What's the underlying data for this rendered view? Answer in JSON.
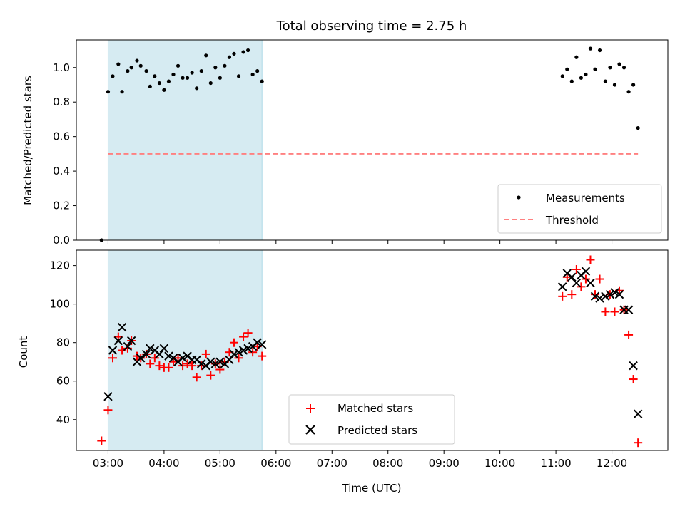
{
  "chart_data": [
    {
      "type": "scatter",
      "title": "Total observing time = 2.75 h",
      "ylabel": "Matched/Predicted stars",
      "xlim": [
        "02:26",
        "13:00"
      ],
      "ylim": [
        0,
        1.16
      ],
      "yticks": [
        "0.0",
        "0.2",
        "0.4",
        "0.6",
        "0.8",
        "1.0"
      ],
      "shaded_interval": {
        "start": "03:00",
        "end": "05:45",
        "color": "#add8e6"
      },
      "legend_position": "lower right",
      "series": [
        {
          "name": "Measurements",
          "color": "#000000",
          "marker": "dot",
          "points": [
            {
              "x": "02:53",
              "y": 0.0
            },
            {
              "x": "03:00",
              "y": 0.86
            },
            {
              "x": "03:05",
              "y": 0.95
            },
            {
              "x": "03:11",
              "y": 1.02
            },
            {
              "x": "03:15",
              "y": 0.86
            },
            {
              "x": "03:21",
              "y": 0.98
            },
            {
              "x": "03:25",
              "y": 1.0
            },
            {
              "x": "03:31",
              "y": 1.04
            },
            {
              "x": "03:35",
              "y": 1.01
            },
            {
              "x": "03:41",
              "y": 0.98
            },
            {
              "x": "03:45",
              "y": 0.89
            },
            {
              "x": "03:50",
              "y": 0.95
            },
            {
              "x": "03:55",
              "y": 0.91
            },
            {
              "x": "04:00",
              "y": 0.87
            },
            {
              "x": "04:05",
              "y": 0.92
            },
            {
              "x": "04:10",
              "y": 0.96
            },
            {
              "x": "04:15",
              "y": 1.01
            },
            {
              "x": "04:20",
              "y": 0.94
            },
            {
              "x": "04:25",
              "y": 0.94
            },
            {
              "x": "04:30",
              "y": 0.97
            },
            {
              "x": "04:35",
              "y": 0.88
            },
            {
              "x": "04:40",
              "y": 0.98
            },
            {
              "x": "04:45",
              "y": 1.07
            },
            {
              "x": "04:50",
              "y": 0.91
            },
            {
              "x": "04:55",
              "y": 1.0
            },
            {
              "x": "05:00",
              "y": 0.94
            },
            {
              "x": "05:05",
              "y": 1.01
            },
            {
              "x": "05:10",
              "y": 1.06
            },
            {
              "x": "05:15",
              "y": 1.08
            },
            {
              "x": "05:20",
              "y": 0.95
            },
            {
              "x": "05:25",
              "y": 1.09
            },
            {
              "x": "05:30",
              "y": 1.1
            },
            {
              "x": "05:35",
              "y": 0.96
            },
            {
              "x": "05:40",
              "y": 0.98
            },
            {
              "x": "05:45",
              "y": 0.92
            },
            {
              "x": "11:07",
              "y": 0.95
            },
            {
              "x": "11:12",
              "y": 0.99
            },
            {
              "x": "11:17",
              "y": 0.92
            },
            {
              "x": "11:22",
              "y": 1.06
            },
            {
              "x": "11:27",
              "y": 0.94
            },
            {
              "x": "11:32",
              "y": 0.96
            },
            {
              "x": "11:37",
              "y": 1.11
            },
            {
              "x": "11:42",
              "y": 0.99
            },
            {
              "x": "11:47",
              "y": 1.1
            },
            {
              "x": "11:53",
              "y": 0.92
            },
            {
              "x": "11:58",
              "y": 1.0
            },
            {
              "x": "12:03",
              "y": 0.9
            },
            {
              "x": "12:08",
              "y": 1.02
            },
            {
              "x": "12:13",
              "y": 1.0
            },
            {
              "x": "12:18",
              "y": 0.86
            },
            {
              "x": "12:23",
              "y": 0.9
            },
            {
              "x": "12:28",
              "y": 0.65
            }
          ]
        },
        {
          "name": "Threshold",
          "color": "#ff8080",
          "style": "dashed",
          "points": [
            {
              "x": "03:00",
              "y": 0.5
            },
            {
              "x": "12:28",
              "y": 0.5
            }
          ]
        }
      ]
    },
    {
      "type": "scatter",
      "xlabel": "Time (UTC)",
      "ylabel": "Count",
      "xlim": [
        "02:26",
        "13:00"
      ],
      "ylim": [
        24,
        128
      ],
      "xticks": [
        "03:00",
        "04:00",
        "05:00",
        "06:00",
        "07:00",
        "08:00",
        "09:00",
        "10:00",
        "11:00",
        "12:00"
      ],
      "yticks": [
        "40",
        "60",
        "80",
        "100",
        "120"
      ],
      "shaded_interval": {
        "start": "03:00",
        "end": "05:45",
        "color": "#add8e6"
      },
      "legend_position": "lower center",
      "series": [
        {
          "name": "Matched stars",
          "color": "#ff0000",
          "marker": "plus",
          "points": [
            {
              "x": "02:53",
              "y": 29
            },
            {
              "x": "03:00",
              "y": 45
            },
            {
              "x": "03:05",
              "y": 72
            },
            {
              "x": "03:11",
              "y": 83
            },
            {
              "x": "03:15",
              "y": 76
            },
            {
              "x": "03:21",
              "y": 77
            },
            {
              "x": "03:25",
              "y": 81
            },
            {
              "x": "03:31",
              "y": 73
            },
            {
              "x": "03:35",
              "y": 72
            },
            {
              "x": "03:41",
              "y": 74
            },
            {
              "x": "03:45",
              "y": 69
            },
            {
              "x": "03:50",
              "y": 72
            },
            {
              "x": "03:55",
              "y": 68
            },
            {
              "x": "04:00",
              "y": 67
            },
            {
              "x": "04:05",
              "y": 67
            },
            {
              "x": "04:10",
              "y": 70
            },
            {
              "x": "04:15",
              "y": 72
            },
            {
              "x": "04:20",
              "y": 68
            },
            {
              "x": "04:25",
              "y": 69
            },
            {
              "x": "04:30",
              "y": 68
            },
            {
              "x": "04:35",
              "y": 62
            },
            {
              "x": "04:40",
              "y": 68
            },
            {
              "x": "04:45",
              "y": 74
            },
            {
              "x": "04:50",
              "y": 63
            },
            {
              "x": "04:55",
              "y": 69
            },
            {
              "x": "05:00",
              "y": 66
            },
            {
              "x": "05:05",
              "y": 70
            },
            {
              "x": "05:10",
              "y": 75
            },
            {
              "x": "05:15",
              "y": 80
            },
            {
              "x": "05:20",
              "y": 72
            },
            {
              "x": "05:25",
              "y": 83
            },
            {
              "x": "05:30",
              "y": 85
            },
            {
              "x": "05:35",
              "y": 75
            },
            {
              "x": "05:40",
              "y": 78
            },
            {
              "x": "05:45",
              "y": 73
            },
            {
              "x": "11:07",
              "y": 104
            },
            {
              "x": "11:12",
              "y": 114
            },
            {
              "x": "11:17",
              "y": 105
            },
            {
              "x": "11:22",
              "y": 118
            },
            {
              "x": "11:27",
              "y": 109
            },
            {
              "x": "11:32",
              "y": 113
            },
            {
              "x": "11:37",
              "y": 123
            },
            {
              "x": "11:42",
              "y": 105
            },
            {
              "x": "11:47",
              "y": 113
            },
            {
              "x": "11:53",
              "y": 96
            },
            {
              "x": "11:58",
              "y": 105
            },
            {
              "x": "12:03",
              "y": 96
            },
            {
              "x": "12:08",
              "y": 107
            },
            {
              "x": "12:13",
              "y": 97
            },
            {
              "x": "12:18",
              "y": 84
            },
            {
              "x": "12:23",
              "y": 61
            },
            {
              "x": "12:28",
              "y": 28
            }
          ]
        },
        {
          "name": "Predicted stars",
          "color": "#000000",
          "marker": "x",
          "points": [
            {
              "x": "03:00",
              "y": 52
            },
            {
              "x": "03:05",
              "y": 76
            },
            {
              "x": "03:11",
              "y": 81
            },
            {
              "x": "03:15",
              "y": 88
            },
            {
              "x": "03:21",
              "y": 78
            },
            {
              "x": "03:25",
              "y": 81
            },
            {
              "x": "03:31",
              "y": 70
            },
            {
              "x": "03:35",
              "y": 72
            },
            {
              "x": "03:41",
              "y": 74
            },
            {
              "x": "03:45",
              "y": 77
            },
            {
              "x": "03:50",
              "y": 76
            },
            {
              "x": "03:55",
              "y": 74
            },
            {
              "x": "04:00",
              "y": 77
            },
            {
              "x": "04:05",
              "y": 73
            },
            {
              "x": "04:10",
              "y": 72
            },
            {
              "x": "04:15",
              "y": 70
            },
            {
              "x": "04:20",
              "y": 72
            },
            {
              "x": "04:25",
              "y": 73
            },
            {
              "x": "04:30",
              "y": 71
            },
            {
              "x": "04:35",
              "y": 71
            },
            {
              "x": "04:40",
              "y": 69
            },
            {
              "x": "04:45",
              "y": 68
            },
            {
              "x": "04:50",
              "y": 70
            },
            {
              "x": "04:55",
              "y": 69
            },
            {
              "x": "05:00",
              "y": 70
            },
            {
              "x": "05:05",
              "y": 69
            },
            {
              "x": "05:10",
              "y": 71
            },
            {
              "x": "05:15",
              "y": 74
            },
            {
              "x": "05:20",
              "y": 75
            },
            {
              "x": "05:25",
              "y": 76
            },
            {
              "x": "05:30",
              "y": 77
            },
            {
              "x": "05:35",
              "y": 78
            },
            {
              "x": "05:40",
              "y": 80
            },
            {
              "x": "05:45",
              "y": 79
            },
            {
              "x": "11:07",
              "y": 109
            },
            {
              "x": "11:12",
              "y": 116
            },
            {
              "x": "11:17",
              "y": 114
            },
            {
              "x": "11:22",
              "y": 111
            },
            {
              "x": "11:27",
              "y": 115
            },
            {
              "x": "11:32",
              "y": 117
            },
            {
              "x": "11:37",
              "y": 111
            },
            {
              "x": "11:42",
              "y": 104
            },
            {
              "x": "11:47",
              "y": 103
            },
            {
              "x": "11:53",
              "y": 104
            },
            {
              "x": "11:58",
              "y": 105
            },
            {
              "x": "12:03",
              "y": 106
            },
            {
              "x": "12:08",
              "y": 105
            },
            {
              "x": "12:13",
              "y": 97
            },
            {
              "x": "12:18",
              "y": 97
            },
            {
              "x": "12:23",
              "y": 68
            },
            {
              "x": "12:28",
              "y": 43
            }
          ]
        }
      ]
    }
  ]
}
